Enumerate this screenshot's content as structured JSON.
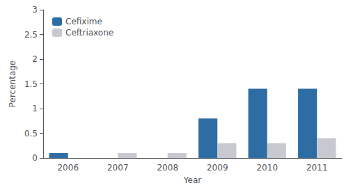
{
  "chart_data": {
    "type": "bar",
    "categories": [
      "2006",
      "2007",
      "2008",
      "2009",
      "2010",
      "2011"
    ],
    "series": [
      {
        "name": "Cefixime",
        "color": "#2E6DA4",
        "values": [
          0.1,
          0.0,
          0.0,
          0.8,
          1.4,
          1.4
        ]
      },
      {
        "name": "Ceftriaxone",
        "color": "#C8C8D0",
        "values": [
          0.0,
          0.1,
          0.1,
          0.3,
          0.3,
          0.4
        ]
      }
    ],
    "xlabel": "Year",
    "ylabel": "Percentage",
    "ylim": [
      0,
      3.0
    ],
    "yticks": [
      0,
      0.5,
      1,
      1.5,
      2,
      2.5,
      3
    ],
    "legend": "upper left",
    "grid": false
  }
}
